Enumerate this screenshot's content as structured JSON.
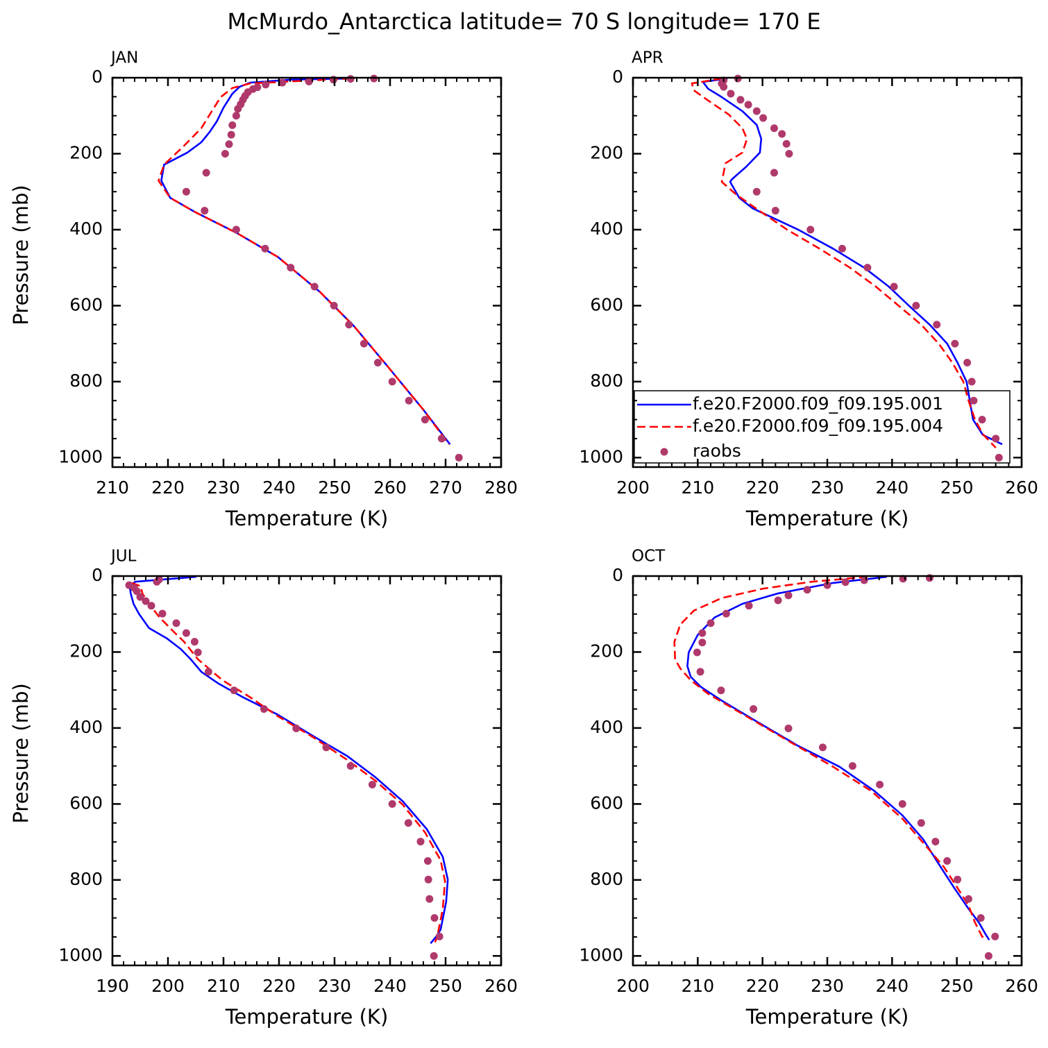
{
  "title": "McMurdo_Antarctica  latitude= 70 S longitude= 170 E",
  "chart_data": [
    {
      "type": "line",
      "title": "JAN",
      "xlabel": "Temperature (K)",
      "ylabel": "Pressure (mb)",
      "xlim": [
        210,
        280
      ],
      "xticks": [
        210,
        220,
        230,
        240,
        250,
        260,
        270,
        280
      ],
      "xminor": [
        212,
        214,
        216,
        218,
        222,
        224,
        226,
        228,
        232,
        234,
        236,
        238,
        242,
        244,
        246,
        248,
        252,
        254,
        256,
        258,
        262,
        264,
        266,
        268,
        272,
        274,
        276,
        278
      ],
      "ylim": [
        1025,
        0
      ],
      "yticks": [
        0,
        200,
        400,
        600,
        800,
        1000
      ],
      "yminor": [
        50,
        100,
        150,
        250,
        300,
        350,
        450,
        500,
        550,
        650,
        700,
        750,
        850,
        900,
        950
      ],
      "series": [
        {
          "color": "#0000ff",
          "style": "solid",
          "x": [
            252.9,
            242.3,
            234.8,
            232.9,
            231.6,
            230,
            228.8,
            227.5,
            226,
            223.5,
            219.3,
            218.8,
            220.4,
            224.8,
            232.3,
            239.8,
            247.3,
            253.5,
            259.8,
            266,
            270.8
          ],
          "values": [
            2,
            5,
            13,
            24,
            42,
            79,
            115,
            143,
            170,
            197,
            229,
            271,
            316,
            353,
            408,
            472,
            563,
            654,
            764,
            874,
            965
          ]
        },
        {
          "color": "#ff0000",
          "style": "dashed",
          "x": [
            252.9,
            234.8,
            231.6,
            229.5,
            227.9,
            226,
            222.9,
            219.3,
            218.3,
            220.4,
            224.8,
            232.3,
            239.8,
            247.3,
            253.5,
            259.8,
            266,
            270.6
          ],
          "values": [
            2,
            15,
            27,
            51,
            88,
            133,
            179,
            229,
            271,
            316,
            353,
            408,
            472,
            563,
            654,
            764,
            874,
            965
          ]
        },
        {
          "color": "#b0396c",
          "style": "dots",
          "x": [
            257.1,
            252.9,
            249.8,
            245.4,
            240.6,
            237.6,
            236.1,
            235.3,
            234.4,
            233.9,
            233.5,
            233.1,
            232.6,
            232.3,
            231.6,
            231.4,
            231,
            230.3,
            226.9,
            223.3,
            226.6,
            232.3,
            237.5,
            242.1,
            246.4,
            249.9,
            252.6,
            255.3,
            257.8,
            260.4,
            263.4,
            266.3,
            269.3,
            272.4
          ],
          "values": [
            2,
            3,
            5,
            10,
            13,
            18,
            25,
            30,
            38,
            48,
            58,
            70,
            82,
            100,
            125,
            150,
            175,
            200,
            250,
            300,
            350,
            400,
            450,
            500,
            550,
            600,
            650,
            700,
            750,
            800,
            850,
            900,
            950,
            1000
          ]
        }
      ]
    },
    {
      "type": "line",
      "title": "APR",
      "xlabel": "Temperature (K)",
      "legend": "lower right",
      "xlim": [
        200,
        260
      ],
      "xticks": [
        200,
        210,
        220,
        230,
        240,
        250,
        260
      ],
      "xminor": [
        202,
        204,
        206,
        208,
        212,
        214,
        216,
        218,
        222,
        224,
        226,
        228,
        232,
        234,
        236,
        238,
        242,
        244,
        246,
        248,
        252,
        254,
        256,
        258
      ],
      "ylim": [
        1025,
        0
      ],
      "yticks": [
        0,
        200,
        400,
        600,
        800,
        1000
      ],
      "yminor": [
        50,
        100,
        150,
        250,
        300,
        350,
        450,
        500,
        550,
        650,
        700,
        750,
        850,
        900,
        950
      ],
      "series": [
        {
          "name": "f.e20.F2000.f09_f09.195.001",
          "color": "#0000ff",
          "style": "solid",
          "x": [
            214.6,
            210.8,
            211.6,
            213.7,
            216.9,
            219.1,
            219.8,
            219.6,
            217.5,
            215.3,
            215,
            216.4,
            218.5,
            225.5,
            230.9,
            235.7,
            239.5,
            242.6,
            245.8,
            248.5,
            250.1,
            251.5,
            252,
            252.5,
            254,
            257
          ],
          "values": [
            2,
            11,
            29,
            51,
            88,
            124,
            161,
            197,
            234,
            267,
            274,
            316,
            344,
            400,
            450,
            500,
            550,
            600,
            650,
            700,
            750,
            800,
            850,
            900,
            940,
            965
          ]
        },
        {
          "name": "f.e20.F2000.f09_f09.195.004",
          "color": "#ff0000",
          "style": "dashed",
          "x": [
            213.7,
            209.1,
            209.4,
            211.6,
            214.8,
            216.9,
            217.6,
            216.9,
            214.3,
            213.7,
            215.9,
            219.5,
            223.8,
            228.8,
            233.5,
            237.5,
            241,
            244.5,
            247.2,
            249.3,
            251,
            251.8,
            252.8,
            254,
            256
          ],
          "values": [
            2,
            15,
            33,
            60,
            97,
            133,
            161,
            197,
            225,
            274,
            307,
            350,
            400,
            450,
            500,
            550,
            600,
            650,
            700,
            750,
            800,
            850,
            900,
            938,
            974
          ]
        },
        {
          "name": "raobs",
          "color": "#b0396c",
          "style": "dots",
          "x": [
            216.2,
            214,
            213.7,
            214,
            215.1,
            216.6,
            217.8,
            219.1,
            220.1,
            221.8,
            223,
            223.7,
            224.1,
            221.8,
            219.1,
            222,
            227.4,
            232.3,
            236.2,
            240.3,
            243.7,
            246.9,
            249.7,
            251.6,
            252.3,
            252.6,
            253.9,
            256,
            256.5
          ],
          "values": [
            2,
            7,
            15,
            24,
            42,
            58,
            71,
            88,
            106,
            133,
            148,
            174,
            200,
            250,
            300,
            350,
            400,
            450,
            500,
            550,
            600,
            650,
            700,
            750,
            800,
            850,
            900,
            950,
            1000
          ]
        }
      ]
    },
    {
      "type": "line",
      "title": "JUL",
      "xlabel": "Temperature (K)",
      "ylabel": "Pressure (mb)",
      "xlim": [
        190,
        260
      ],
      "xticks": [
        190,
        200,
        210,
        220,
        230,
        240,
        250,
        260
      ],
      "xminor": [
        192,
        194,
        196,
        198,
        202,
        204,
        206,
        208,
        212,
        214,
        216,
        218,
        222,
        224,
        226,
        228,
        232,
        234,
        236,
        238,
        242,
        244,
        246,
        248,
        252,
        254,
        256,
        258
      ],
      "ylim": [
        1025,
        0
      ],
      "yticks": [
        0,
        200,
        400,
        600,
        800,
        1000
      ],
      "yminor": [
        50,
        100,
        150,
        250,
        300,
        350,
        450,
        500,
        550,
        650,
        700,
        750,
        850,
        900,
        950
      ],
      "series": [
        {
          "color": "#0000ff",
          "style": "solid",
          "x": [
            205.1,
            194.1,
            193.1,
            193.3,
            193.8,
            194.8,
            196.6,
            199.8,
            202.3,
            204.1,
            206,
            209.1,
            213.5,
            219.8,
            226,
            232.3,
            237.3,
            242.3,
            246.6,
            249.5,
            250.4,
            250.1,
            249.1,
            248.3,
            247.3
          ],
          "values": [
            2,
            15,
            27,
            46,
            73,
            100,
            137,
            164,
            192,
            219,
            252,
            283,
            319,
            365,
            420,
            474,
            529,
            593,
            666,
            739,
            799,
            858,
            931,
            949,
            967
          ]
        },
        {
          "color": "#ff0000",
          "style": "dashed",
          "x": [
            193.5,
            195.1,
            195.4,
            196.6,
            198.5,
            201,
            202.9,
            205.4,
            209.8,
            214.8,
            219.8,
            226,
            232.3,
            237.3,
            242.3,
            246.3,
            249.1,
            249.9,
            249.5,
            248.5,
            248.1
          ],
          "values": [
            18,
            27,
            46,
            73,
            109,
            146,
            173,
            219,
            274,
            319,
            369,
            423,
            484,
            538,
            602,
            675,
            748,
            803,
            876,
            949,
            964
          ]
        },
        {
          "color": "#b0396c",
          "style": "dots",
          "x": [
            198.4,
            198,
            193,
            193.9,
            194.4,
            195,
            196,
            197,
            199,
            201.5,
            203.3,
            204.8,
            205.4,
            207.3,
            211.9,
            217.3,
            223.1,
            228.5,
            232.9,
            236.8,
            240.4,
            243.3,
            245.5,
            246.8,
            246.9,
            247.1,
            248,
            248.9,
            247.9
          ],
          "values": [
            9,
            15,
            24,
            31,
            40,
            55,
            66,
            78,
            99,
            124,
            150,
            173,
            201,
            252,
            301,
            350,
            401,
            451,
            500,
            549,
            600,
            650,
            699,
            750,
            799,
            850,
            900,
            949,
            1000
          ]
        }
      ]
    },
    {
      "type": "line",
      "title": "OCT",
      "xlabel": "Temperature (K)",
      "xlim": [
        200,
        260
      ],
      "xticks": [
        200,
        210,
        220,
        230,
        240,
        250,
        260
      ],
      "xminor": [
        202,
        204,
        206,
        208,
        212,
        214,
        216,
        218,
        222,
        224,
        226,
        228,
        232,
        234,
        236,
        238,
        242,
        244,
        246,
        248,
        252,
        254,
        256,
        258
      ],
      "ylim": [
        1025,
        0
      ],
      "yticks": [
        0,
        200,
        400,
        600,
        800,
        1000
      ],
      "yminor": [
        50,
        100,
        150,
        250,
        300,
        350,
        450,
        500,
        550,
        650,
        700,
        750,
        850,
        900,
        950
      ],
      "series": [
        {
          "color": "#0000ff",
          "style": "solid",
          "x": [
            239.2,
            230.9,
            222.3,
            216.9,
            212.6,
            210,
            208.6,
            208.4,
            208.9,
            210.5,
            213.7,
            219.1,
            225.5,
            231.9,
            237.3,
            241.6,
            244.8,
            247.5,
            249.6,
            251.8,
            253.4,
            254.5,
            255
          ],
          "values": [
            2,
            18,
            46,
            73,
            109,
            155,
            201,
            237,
            265,
            292,
            328,
            383,
            447,
            502,
            566,
            630,
            693,
            766,
            821,
            876,
            912,
            945,
            958
          ]
        },
        {
          "color": "#ff0000",
          "style": "dashed",
          "x": [
            236.2,
            227.6,
            220.1,
            213.7,
            209.4,
            207.3,
            206.4,
            206.5,
            207.3,
            208.9,
            211.6,
            218,
            224.4,
            230.9,
            236.8,
            241.6,
            245.3,
            248,
            250.1,
            251.8,
            252.8,
            253.9,
            254.6
          ],
          "values": [
            2,
            15,
            33,
            58,
            91,
            128,
            173,
            219,
            243,
            274,
            310,
            374,
            438,
            502,
            566,
            639,
            712,
            766,
            821,
            867,
            912,
            949,
            958
          ]
        },
        {
          "color": "#b0396c",
          "style": "dots",
          "x": [
            245.8,
            241.7,
            235.7,
            232.8,
            230,
            226.9,
            224,
            222.4,
            217.9,
            214.4,
            212,
            210.7,
            210.7,
            209.9,
            210.4,
            213.6,
            218.6,
            224,
            229.3,
            233.9,
            238.1,
            241.6,
            244.5,
            246.7,
            248.5,
            250.1,
            251.8,
            253.7,
            255.9,
            254.9
          ],
          "values": [
            5,
            7,
            11,
            16,
            24,
            36,
            51,
            64,
            78,
            99,
            124,
            150,
            175,
            201,
            252,
            301,
            350,
            401,
            451,
            500,
            549,
            600,
            650,
            699,
            750,
            799,
            850,
            900,
            949,
            1000
          ]
        }
      ]
    }
  ]
}
